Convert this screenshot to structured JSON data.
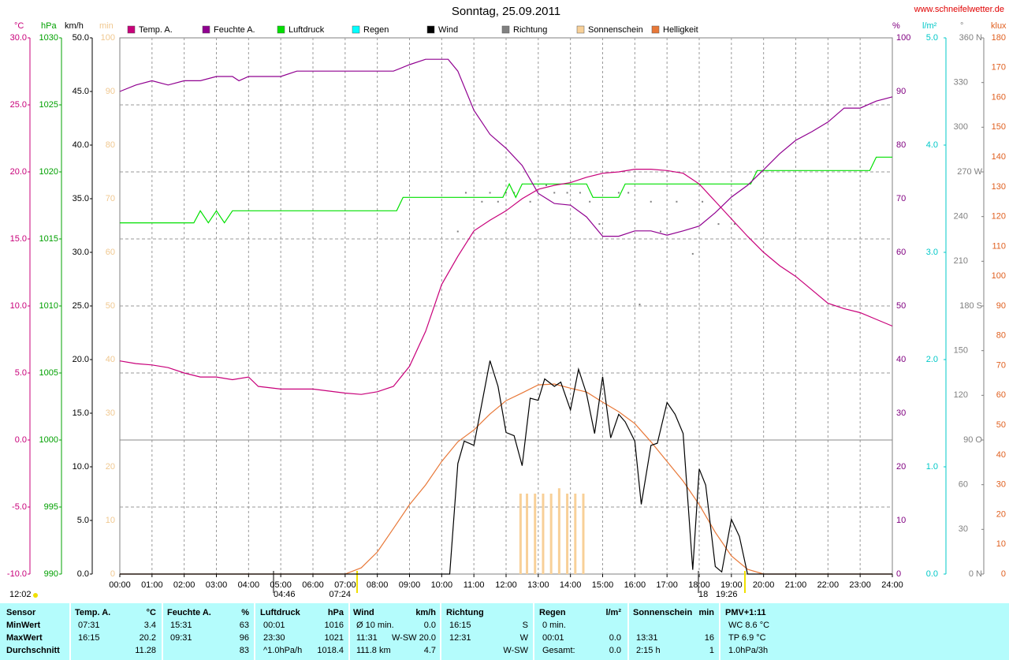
{
  "chart_data": {
    "type": "line",
    "title": "Sonntag, 25.09.2011",
    "source": "www.schneifelwetter.de",
    "xlim": [
      0,
      24
    ],
    "xticks": [
      {
        "value": 0,
        "label": "00:00"
      },
      {
        "value": 1,
        "label": "01:00"
      },
      {
        "value": 2,
        "label": "02:00"
      },
      {
        "value": 3,
        "label": "03:00"
      },
      {
        "value": 4,
        "label": "04:00"
      },
      {
        "value": 5,
        "label": "05:00"
      },
      {
        "value": 6,
        "label": "06:00"
      },
      {
        "value": 7,
        "label": "07:00"
      },
      {
        "value": 8,
        "label": "08:00"
      },
      {
        "value": 9,
        "label": "09:00"
      },
      {
        "value": 10,
        "label": "10:00"
      },
      {
        "value": 11,
        "label": "11:00"
      },
      {
        "value": 12,
        "label": "12:00"
      },
      {
        "value": 13,
        "label": "13:00"
      },
      {
        "value": 14,
        "label": "14:00"
      },
      {
        "value": 15,
        "label": "15:00"
      },
      {
        "value": 16,
        "label": "16:00"
      },
      {
        "value": 17,
        "label": "17:00"
      },
      {
        "value": 18,
        "label": "18:00"
      },
      {
        "value": 19,
        "label": "19:00"
      },
      {
        "value": 20,
        "label": "20:00"
      },
      {
        "value": 21,
        "label": "21:00"
      },
      {
        "value": 22,
        "label": "22:00"
      },
      {
        "value": 23,
        "label": "23:00"
      },
      {
        "value": 24,
        "label": "24:00"
      }
    ],
    "grid": true,
    "axes": [
      {
        "name": "°C",
        "color": "#c8007a",
        "lim": [
          -10,
          30
        ],
        "ticks": [
          {
            "value": 30,
            "label": "30.0"
          },
          {
            "value": 25,
            "label": "25.0"
          },
          {
            "value": 20,
            "label": "20.0"
          },
          {
            "value": 15,
            "label": "15.0"
          },
          {
            "value": 10,
            "label": "10.0"
          },
          {
            "value": 5,
            "label": "5.0"
          },
          {
            "value": 0,
            "label": "0.0"
          },
          {
            "value": -5,
            "label": "-5.0"
          },
          {
            "value": -10,
            "label": "-10.0"
          }
        ]
      },
      {
        "name": "hPa",
        "color": "#00a000",
        "lim": [
          990,
          1030
        ],
        "ticks": [
          1030,
          1025,
          1020,
          1015,
          1010,
          1005,
          1000,
          995,
          990
        ]
      },
      {
        "name": "km/h",
        "color": "#000000",
        "lim": [
          0,
          50
        ],
        "ticks": [
          {
            "value": 50,
            "label": "50.0"
          },
          {
            "value": 45,
            "label": "45.0"
          },
          {
            "value": 40,
            "label": "40.0"
          },
          {
            "value": 35,
            "label": "35.0"
          },
          {
            "value": 30,
            "label": "30.0"
          },
          {
            "value": 25,
            "label": "25.0"
          },
          {
            "value": 20,
            "label": "20.0"
          },
          {
            "value": 15,
            "label": "15.0"
          },
          {
            "value": 10,
            "label": "10.0"
          },
          {
            "value": 5,
            "label": "5.0"
          },
          {
            "value": 0,
            "label": "0.0"
          }
        ]
      },
      {
        "name": "min",
        "color": "#f0c890",
        "lim": [
          0,
          100
        ],
        "ticks": [
          100,
          90,
          80,
          70,
          60,
          50,
          40,
          30,
          20,
          10,
          0
        ]
      },
      {
        "name": "%",
        "color": "#800080",
        "lim": [
          0,
          100
        ],
        "ticks": [
          100,
          90,
          80,
          70,
          60,
          50,
          40,
          30,
          20,
          10,
          0
        ]
      },
      {
        "name": "l/m²",
        "color": "#00c8c8",
        "lim": [
          0,
          5
        ],
        "ticks": [
          {
            "value": 5,
            "label": "5.0"
          },
          {
            "value": 4,
            "label": "4.0"
          },
          {
            "value": 3,
            "label": "3.0"
          },
          {
            "value": 2,
            "label": "2.0"
          },
          {
            "value": 1,
            "label": "1.0"
          },
          {
            "value": 0,
            "label": "0.0"
          }
        ]
      },
      {
        "name": "°",
        "color": "#808080",
        "lim": [
          0,
          360
        ],
        "ticks": [
          {
            "value": 360,
            "label": "360 N"
          },
          330,
          300,
          {
            "value": 270,
            "label": "270 W"
          },
          240,
          210,
          {
            "value": 180,
            "label": "180 S"
          },
          150,
          120,
          {
            "value": 90,
            "label": "90 O"
          },
          60,
          30,
          {
            "value": 0,
            "label": "0 N"
          }
        ]
      },
      {
        "name": "klux",
        "color": "#e06020",
        "lim": [
          0,
          180
        ],
        "ticks": [
          180,
          170,
          160,
          150,
          140,
          130,
          120,
          110,
          100,
          90,
          80,
          70,
          60,
          50,
          40,
          30,
          20,
          10,
          0
        ]
      }
    ],
    "series": [
      {
        "name": "Temp. A.",
        "color": "#c8007a",
        "kind": "line",
        "axis": 0,
        "x": [
          0,
          0.5,
          1,
          1.5,
          2,
          2.5,
          3,
          3.5,
          4,
          4.3,
          5,
          6,
          7,
          7.5,
          8,
          8.5,
          9,
          9.5,
          10,
          10.5,
          11,
          11.5,
          12,
          12.5,
          13,
          13.5,
          14,
          14.5,
          15,
          15.5,
          16,
          16.5,
          17,
          17.5,
          18,
          18.5,
          19,
          19.5,
          20,
          20.5,
          21,
          21.5,
          22,
          22.5,
          23,
          23.5,
          24
        ],
        "values": [
          5.9,
          5.7,
          5.6,
          5.4,
          5.0,
          4.7,
          4.7,
          4.5,
          4.7,
          4.0,
          3.8,
          3.8,
          3.5,
          3.4,
          3.6,
          4.0,
          5.5,
          8.1,
          11.6,
          13.7,
          15.6,
          16.4,
          17.1,
          18.0,
          18.7,
          19.0,
          19.2,
          19.6,
          19.9,
          20.0,
          20.2,
          20.2,
          20.1,
          19.9,
          19.1,
          17.8,
          16.5,
          15.2,
          14.0,
          13.0,
          12.2,
          11.2,
          10.2,
          9.8,
          9.5,
          9.0,
          8.5
        ]
      },
      {
        "name": "Feuchte A.",
        "color": "#900090",
        "kind": "line",
        "axis": 4,
        "x": [
          0,
          0.5,
          1,
          1.5,
          2,
          2.5,
          3,
          3.5,
          3.7,
          4,
          5,
          5.5,
          8.5,
          9,
          9.5,
          10.2,
          10.5,
          11,
          11.5,
          12,
          12.5,
          13,
          13.5,
          14,
          14.5,
          15,
          15.5,
          16,
          16.5,
          17,
          17.5,
          18,
          18.5,
          19,
          19.5,
          20,
          20.5,
          21,
          21.5,
          22,
          22.5,
          23,
          23.5,
          24
        ],
        "values": [
          90,
          91.2,
          92,
          91.2,
          92,
          92,
          92.8,
          92.8,
          92,
          92.8,
          92.8,
          93.8,
          93.8,
          95,
          96,
          96,
          93.8,
          86.5,
          82,
          79.4,
          76.2,
          71,
          69.1,
          68.8,
          66.6,
          63,
          63,
          64,
          64,
          63.2,
          64,
          64.9,
          67.4,
          70.3,
          72.5,
          75.4,
          78.4,
          80.9,
          82.5,
          84.3,
          86.9,
          86.9,
          88.2,
          89
        ]
      },
      {
        "name": "Luftdruck",
        "color": "#00e000",
        "kind": "line",
        "axis": 1,
        "x": [
          0,
          2.3,
          2.5,
          2.75,
          3,
          3.25,
          3.5,
          8.6,
          8.8,
          11.9,
          12.1,
          12.3,
          12.5,
          14.5,
          14.7,
          15.5,
          15.7,
          19.6,
          19.8,
          23.3,
          23.5,
          24
        ],
        "values": [
          1016.2,
          1016.2,
          1017.1,
          1016.2,
          1017.1,
          1016.2,
          1017.1,
          1017.1,
          1018.1,
          1018.1,
          1019.1,
          1018.1,
          1019.1,
          1019.1,
          1018.1,
          1018.1,
          1019.1,
          1019.1,
          1020.1,
          1020.1,
          1021.1,
          1021.1
        ]
      },
      {
        "name": "Regen",
        "color": "#00ffff",
        "kind": "line",
        "axis": 5
      },
      {
        "name": "Wind",
        "color": "#000000",
        "kind": "line",
        "axis": 2,
        "x": [
          0,
          10.25,
          10.5,
          10.7,
          11.0,
          11.5,
          11.75,
          12.0,
          12.25,
          12.5,
          12.75,
          13.0,
          13.2,
          13.5,
          13.7,
          14.0,
          14.25,
          14.5,
          14.75,
          15.0,
          15.25,
          15.5,
          15.7,
          16.0,
          16.2,
          16.5,
          16.7,
          17.0,
          17.25,
          17.5,
          17.8,
          18.0,
          18.2,
          18.5,
          18.7,
          19.0,
          19.25,
          19.5,
          24
        ],
        "values": [
          0,
          0,
          10.3,
          12.4,
          12.0,
          19.9,
          17.5,
          13.2,
          12.9,
          10.1,
          16.4,
          16.2,
          18.2,
          17.5,
          17.9,
          15.3,
          19.1,
          16.8,
          13.1,
          18.4,
          12.7,
          14.9,
          14.2,
          12.4,
          6.5,
          12.0,
          12.2,
          16.0,
          14.9,
          13.1,
          0.4,
          9.8,
          8.3,
          0.7,
          0.2,
          5.1,
          3.5,
          0,
          0
        ]
      },
      {
        "name": "Richtung",
        "color": "#808080",
        "kind": "dots",
        "axis": 6,
        "x": [
          10.5,
          10.75,
          11.25,
          11.5,
          11.75,
          12.0,
          12.25,
          12.75,
          13.25,
          13.5,
          13.9,
          14.3,
          14.6,
          14.9,
          15.5,
          15.8,
          16.15,
          16.5,
          16.8,
          17.3,
          17.8,
          18.1,
          18.6,
          19.1
        ],
        "values": [
          230,
          256,
          250,
          256,
          250,
          256,
          256,
          250,
          261,
          256,
          256,
          256,
          250,
          235,
          256,
          256,
          181,
          250,
          230,
          250,
          215,
          250,
          235,
          235
        ]
      },
      {
        "name": "Sonnenschein",
        "color": "#f8d098",
        "kind": "bar",
        "axis": 3,
        "x": [
          12.45,
          12.65,
          12.9,
          13.15,
          13.4,
          13.65,
          13.9,
          14.15,
          14.4
        ],
        "values": [
          15,
          15,
          15,
          15,
          15,
          16,
          15,
          15,
          15
        ]
      },
      {
        "name": "Helligkeit",
        "color": "#e87838",
        "kind": "line",
        "axis": 7,
        "x": [
          0,
          7,
          7.5,
          8,
          8.5,
          9,
          9.5,
          10,
          10.5,
          11,
          11.5,
          12,
          12.5,
          13,
          13.5,
          14,
          14.5,
          15,
          15.5,
          16,
          16.5,
          17,
          17.5,
          18,
          18.5,
          19,
          19.5,
          20,
          24
        ],
        "values": [
          0,
          0,
          2.1,
          7.4,
          15.3,
          23.3,
          29.9,
          37.8,
          44.4,
          48.4,
          53.7,
          58.2,
          60.8,
          63.5,
          63.8,
          62.4,
          61.1,
          57.7,
          54.5,
          50.5,
          44.4,
          37.8,
          31.2,
          23.3,
          14.0,
          6.1,
          1.6,
          0,
          0
        ]
      }
    ],
    "annotations": [
      "12:02",
      "04:46",
      "07:24",
      "18",
      "19:26"
    ]
  },
  "stats": {
    "row_labels": [
      "Sensor",
      "MinWert",
      "MaxWert",
      "Durchschnitt"
    ],
    "columns": [
      {
        "name": "Temp. A.",
        "unit": "°C",
        "rows": [
          {
            "left": "07:31",
            "right": "3.4"
          },
          {
            "left": "16:15",
            "right": "20.2"
          },
          {
            "right": "11.28"
          }
        ]
      },
      {
        "name": "Feuchte A.",
        "unit": "%",
        "rows": [
          {
            "left": "15:31",
            "right": "63"
          },
          {
            "left": "09:31",
            "right": "96"
          },
          {
            "right": "83"
          }
        ]
      },
      {
        "name": "Luftdruck",
        "unit": "hPa",
        "rows": [
          {
            "left": "00:01",
            "right": "1016"
          },
          {
            "left": "23:30",
            "right": "1021"
          },
          {
            "left": "^1.0hPa/h",
            "right": "1018.4"
          }
        ]
      },
      {
        "name": "Wind",
        "unit": "km/h",
        "rows": [
          {
            "left": "Ø 10 min.",
            "right": "0.0"
          },
          {
            "left": "11:31",
            "right": "W-SW 20.0"
          },
          {
            "left": "111.8 km",
            "right": "4.7"
          }
        ]
      },
      {
        "name": "Richtung",
        "rows": [
          {
            "left": "16:15",
            "right": "S"
          },
          {
            "left": "12:31",
            "right": "W"
          },
          {
            "right": "W-SW"
          }
        ]
      },
      {
        "name": "Regen",
        "unit": "l/m²",
        "rows": [
          {
            "left": "0 min."
          },
          {
            "left": "00:01",
            "right": "0.0"
          },
          {
            "left": "Gesamt:",
            "right": "0.0"
          }
        ]
      },
      {
        "name": "Sonnenschein",
        "unit": "min",
        "rows": [
          {},
          {
            "left": "13:31",
            "right": "16"
          },
          {
            "left": "2:15 h",
            "right": "1"
          }
        ]
      },
      {
        "name": "PMV+1:11",
        "rows": [
          {
            "left": "WC 8.6 °C"
          },
          {
            "left": "TP 6.9 °C"
          },
          {
            "left": "1.0hPa/3h"
          }
        ]
      }
    ]
  }
}
